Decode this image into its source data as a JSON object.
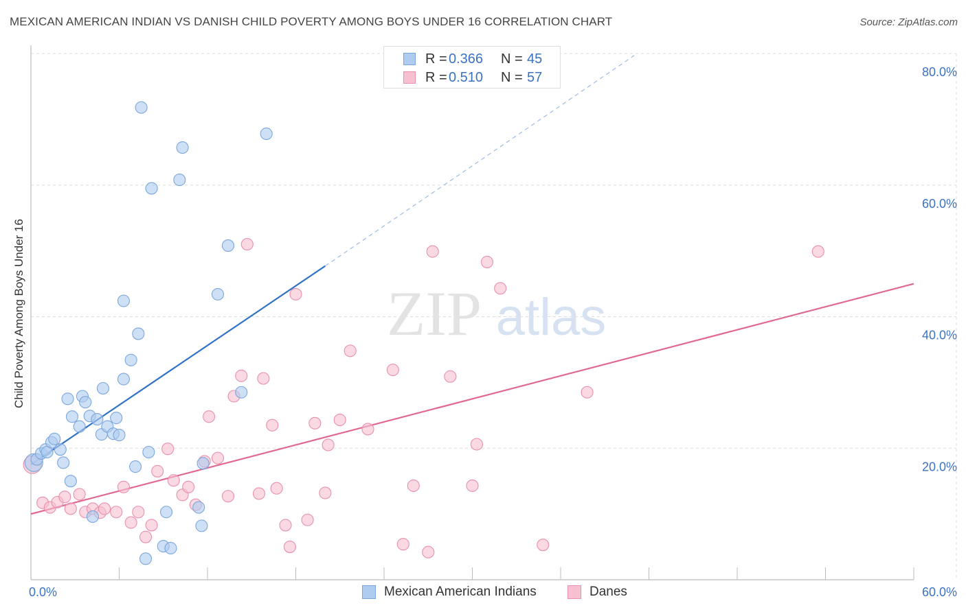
{
  "title": "MEXICAN AMERICAN INDIAN VS DANISH CHILD POVERTY AMONG BOYS UNDER 16 CORRELATION CHART",
  "source": "Source: ZipAtlas.com",
  "watermark": {
    "zip": "ZIP",
    "atlas": "atlas"
  },
  "legend_top": {
    "rows": [
      {
        "r_label": "R =",
        "r_value": "0.366",
        "n_label": "N =",
        "n_value": "45"
      },
      {
        "r_label": "R =",
        "r_value": "0.510",
        "n_label": "N =",
        "n_value": "57"
      }
    ]
  },
  "legend_bottom": [
    "Mexican American Indians",
    "Danes"
  ],
  "colors": {
    "blue_fill": "#aecbf0",
    "blue_stroke": "#7aa6dc",
    "blue_line": "#2f72c8",
    "pink_fill": "#f6c0d0",
    "pink_stroke": "#e88fab",
    "pink_line": "#e06892",
    "tick_label": "#3a72c4",
    "grid": "#dddddd"
  },
  "chart_data": {
    "type": "scatter",
    "title": "MEXICAN AMERICAN INDIAN VS DANISH CHILD POVERTY AMONG BOYS UNDER 16 CORRELATION CHART",
    "xlabel": "",
    "ylabel": "Child Poverty Among Boys Under 16",
    "xlim": [
      0,
      60
    ],
    "ylim": [
      0,
      80
    ],
    "x_tick_labels": [
      {
        "value": 0,
        "label": "0.0%"
      },
      {
        "value": 60,
        "label": "60.0%"
      }
    ],
    "y_tick_labels": [
      {
        "value": 20,
        "label": "20.0%"
      },
      {
        "value": 40,
        "label": "40.0%"
      },
      {
        "value": 60,
        "label": "60.0%"
      },
      {
        "value": 80,
        "label": "80.0%"
      }
    ],
    "grid": true,
    "legend_position": "top-center",
    "series": [
      {
        "name": "Mexican American Indians",
        "color": "#aecbf0",
        "points": [
          [
            0.2,
            17.8
          ],
          [
            0.4,
            18.3
          ],
          [
            0.7,
            19.2
          ],
          [
            1.0,
            19.8
          ],
          [
            1.1,
            19.4
          ],
          [
            1.4,
            20.9
          ],
          [
            1.6,
            21.4
          ],
          [
            2.0,
            19.8
          ],
          [
            2.2,
            17.8
          ],
          [
            2.5,
            27.5
          ],
          [
            2.7,
            15.0
          ],
          [
            2.8,
            24.8
          ],
          [
            3.3,
            23.3
          ],
          [
            3.5,
            27.9
          ],
          [
            3.7,
            27.0
          ],
          [
            4.0,
            24.9
          ],
          [
            4.5,
            24.4
          ],
          [
            4.8,
            22.1
          ],
          [
            4.9,
            29.1
          ],
          [
            5.2,
            23.3
          ],
          [
            5.6,
            22.2
          ],
          [
            5.8,
            24.6
          ],
          [
            6.0,
            22.0
          ],
          [
            6.3,
            42.4
          ],
          [
            6.3,
            30.5
          ],
          [
            6.8,
            33.4
          ],
          [
            7.1,
            17.2
          ],
          [
            7.3,
            37.4
          ],
          [
            7.5,
            71.8
          ],
          [
            8.0,
            19.4
          ],
          [
            8.2,
            59.5
          ],
          [
            9.0,
            5.1
          ],
          [
            9.2,
            10.3
          ],
          [
            9.5,
            4.8
          ],
          [
            10.1,
            60.8
          ],
          [
            10.3,
            65.7
          ],
          [
            11.4,
            11.0
          ],
          [
            11.6,
            8.2
          ],
          [
            11.7,
            17.7
          ],
          [
            12.7,
            43.4
          ],
          [
            13.4,
            50.8
          ],
          [
            14.3,
            28.5
          ],
          [
            16.0,
            67.8
          ],
          [
            7.8,
            3.2
          ],
          [
            4.2,
            9.6
          ]
        ]
      },
      {
        "name": "Danes",
        "color": "#f6c0d0",
        "points": [
          [
            0.1,
            17.5
          ],
          [
            0.8,
            11.7
          ],
          [
            1.3,
            11.0
          ],
          [
            1.8,
            11.8
          ],
          [
            2.3,
            12.6
          ],
          [
            2.7,
            10.8
          ],
          [
            3.3,
            13.0
          ],
          [
            3.7,
            10.3
          ],
          [
            4.2,
            10.8
          ],
          [
            4.7,
            10.2
          ],
          [
            5.0,
            10.8
          ],
          [
            5.8,
            10.3
          ],
          [
            6.3,
            14.1
          ],
          [
            6.8,
            8.7
          ],
          [
            7.3,
            10.3
          ],
          [
            7.8,
            6.5
          ],
          [
            8.2,
            8.3
          ],
          [
            8.6,
            16.5
          ],
          [
            9.3,
            19.9
          ],
          [
            9.7,
            15.1
          ],
          [
            10.3,
            12.9
          ],
          [
            10.7,
            14.1
          ],
          [
            11.2,
            11.4
          ],
          [
            11.8,
            18.0
          ],
          [
            12.1,
            24.8
          ],
          [
            12.7,
            18.5
          ],
          [
            13.4,
            12.7
          ],
          [
            13.8,
            27.9
          ],
          [
            14.3,
            31.0
          ],
          [
            14.7,
            51.0
          ],
          [
            15.5,
            13.1
          ],
          [
            15.8,
            30.6
          ],
          [
            16.4,
            23.5
          ],
          [
            16.7,
            13.9
          ],
          [
            17.3,
            8.3
          ],
          [
            17.6,
            5.0
          ],
          [
            18.0,
            43.4
          ],
          [
            18.8,
            9.1
          ],
          [
            19.3,
            23.8
          ],
          [
            20.0,
            13.2
          ],
          [
            20.2,
            20.5
          ],
          [
            21.0,
            24.3
          ],
          [
            21.7,
            34.8
          ],
          [
            22.9,
            22.9
          ],
          [
            24.6,
            31.9
          ],
          [
            25.3,
            5.4
          ],
          [
            26.0,
            14.3
          ],
          [
            27.0,
            4.2
          ],
          [
            27.3,
            49.9
          ],
          [
            28.5,
            30.9
          ],
          [
            30.0,
            14.3
          ],
          [
            30.3,
            20.6
          ],
          [
            31.0,
            48.3
          ],
          [
            31.9,
            44.3
          ],
          [
            34.8,
            5.3
          ],
          [
            37.8,
            28.5
          ],
          [
            53.5,
            49.9
          ]
        ]
      }
    ],
    "trend_lines": [
      {
        "series": "Mexican American Indians",
        "x0": 0,
        "y0": 17.5,
        "x1": 20,
        "y1": 47.7,
        "dashed_to_x": 41,
        "dashed_to_y": 79.7
      },
      {
        "series": "Danes",
        "x0": 0,
        "y0": 10.0,
        "x1": 60,
        "y1": 45.0
      }
    ]
  }
}
